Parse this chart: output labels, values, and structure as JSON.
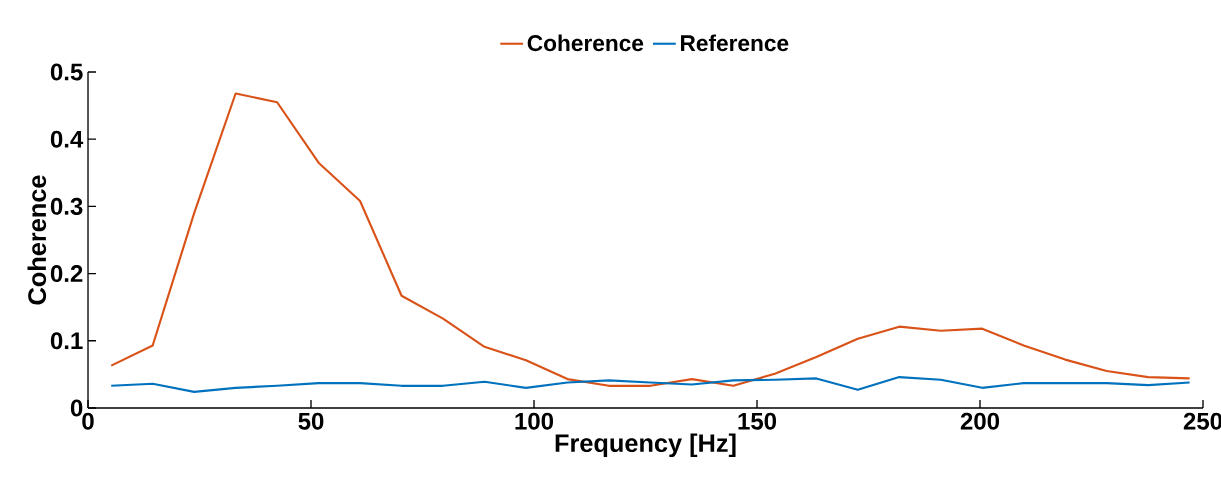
{
  "chart_data": {
    "type": "line",
    "xlabel": "Frequency [Hz]",
    "ylabel": "Coherence",
    "x": [
      5.2,
      14.5,
      23.8,
      33.1,
      42.4,
      51.7,
      61.0,
      70.3,
      79.6,
      88.9,
      98.2,
      107.5,
      116.8,
      126.1,
      135.4,
      144.7,
      154.0,
      163.3,
      172.6,
      181.9,
      191.2,
      200.5,
      209.8,
      219.1,
      228.4,
      237.7,
      247.0
    ],
    "series": [
      {
        "name": "Coherence",
        "color": "#d95319",
        "values": [
          0.063,
          0.093,
          0.29,
          0.468,
          0.455,
          0.365,
          0.308,
          0.167,
          0.133,
          0.091,
          0.071,
          0.043,
          0.033,
          0.033,
          0.043,
          0.033,
          0.051,
          0.076,
          0.103,
          0.121,
          0.115,
          0.118,
          0.093,
          0.072,
          0.055,
          0.046,
          0.044
        ]
      },
      {
        "name": "Reference",
        "color": "#0072bd",
        "values": [
          0.033,
          0.036,
          0.024,
          0.03,
          0.033,
          0.037,
          0.037,
          0.033,
          0.033,
          0.039,
          0.03,
          0.038,
          0.041,
          0.038,
          0.035,
          0.041,
          0.042,
          0.044,
          0.027,
          0.046,
          0.042,
          0.03,
          0.037,
          0.037,
          0.037,
          0.034,
          0.038
        ]
      }
    ],
    "xlim": [
      0,
      250
    ],
    "ylim": [
      0,
      0.5
    ],
    "xticks": [
      0,
      50,
      100,
      150,
      200,
      250
    ],
    "yticks": [
      0,
      0.1,
      0.2,
      0.3,
      0.4,
      0.5
    ],
    "legend": "top",
    "grid": false,
    "line_style": "solid",
    "marker": "none"
  }
}
